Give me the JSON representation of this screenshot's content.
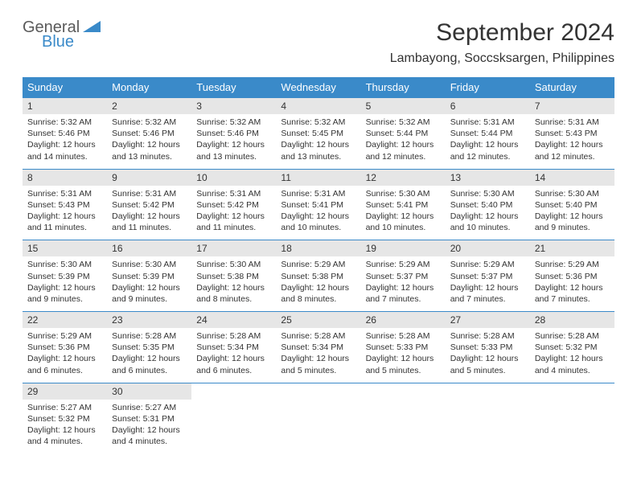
{
  "logo": {
    "text1": "General",
    "text2": "Blue",
    "icon_color": "#3a8ac9"
  },
  "title": "September 2024",
  "location": "Lambayong, Soccsksargen, Philippines",
  "colors": {
    "header_bg": "#3a8ac9",
    "header_text": "#ffffff",
    "daynum_bg": "#e6e6e6",
    "text": "#333333",
    "border": "#3a8ac9",
    "background": "#ffffff"
  },
  "weekdays": [
    "Sunday",
    "Monday",
    "Tuesday",
    "Wednesday",
    "Thursday",
    "Friday",
    "Saturday"
  ],
  "weeks": [
    [
      {
        "n": "1",
        "sr": "5:32 AM",
        "ss": "5:46 PM",
        "dl": "12 hours and 14 minutes."
      },
      {
        "n": "2",
        "sr": "5:32 AM",
        "ss": "5:46 PM",
        "dl": "12 hours and 13 minutes."
      },
      {
        "n": "3",
        "sr": "5:32 AM",
        "ss": "5:46 PM",
        "dl": "12 hours and 13 minutes."
      },
      {
        "n": "4",
        "sr": "5:32 AM",
        "ss": "5:45 PM",
        "dl": "12 hours and 13 minutes."
      },
      {
        "n": "5",
        "sr": "5:32 AM",
        "ss": "5:44 PM",
        "dl": "12 hours and 12 minutes."
      },
      {
        "n": "6",
        "sr": "5:31 AM",
        "ss": "5:44 PM",
        "dl": "12 hours and 12 minutes."
      },
      {
        "n": "7",
        "sr": "5:31 AM",
        "ss": "5:43 PM",
        "dl": "12 hours and 12 minutes."
      }
    ],
    [
      {
        "n": "8",
        "sr": "5:31 AM",
        "ss": "5:43 PM",
        "dl": "12 hours and 11 minutes."
      },
      {
        "n": "9",
        "sr": "5:31 AM",
        "ss": "5:42 PM",
        "dl": "12 hours and 11 minutes."
      },
      {
        "n": "10",
        "sr": "5:31 AM",
        "ss": "5:42 PM",
        "dl": "12 hours and 11 minutes."
      },
      {
        "n": "11",
        "sr": "5:31 AM",
        "ss": "5:41 PM",
        "dl": "12 hours and 10 minutes."
      },
      {
        "n": "12",
        "sr": "5:30 AM",
        "ss": "5:41 PM",
        "dl": "12 hours and 10 minutes."
      },
      {
        "n": "13",
        "sr": "5:30 AM",
        "ss": "5:40 PM",
        "dl": "12 hours and 10 minutes."
      },
      {
        "n": "14",
        "sr": "5:30 AM",
        "ss": "5:40 PM",
        "dl": "12 hours and 9 minutes."
      }
    ],
    [
      {
        "n": "15",
        "sr": "5:30 AM",
        "ss": "5:39 PM",
        "dl": "12 hours and 9 minutes."
      },
      {
        "n": "16",
        "sr": "5:30 AM",
        "ss": "5:39 PM",
        "dl": "12 hours and 9 minutes."
      },
      {
        "n": "17",
        "sr": "5:30 AM",
        "ss": "5:38 PM",
        "dl": "12 hours and 8 minutes."
      },
      {
        "n": "18",
        "sr": "5:29 AM",
        "ss": "5:38 PM",
        "dl": "12 hours and 8 minutes."
      },
      {
        "n": "19",
        "sr": "5:29 AM",
        "ss": "5:37 PM",
        "dl": "12 hours and 7 minutes."
      },
      {
        "n": "20",
        "sr": "5:29 AM",
        "ss": "5:37 PM",
        "dl": "12 hours and 7 minutes."
      },
      {
        "n": "21",
        "sr": "5:29 AM",
        "ss": "5:36 PM",
        "dl": "12 hours and 7 minutes."
      }
    ],
    [
      {
        "n": "22",
        "sr": "5:29 AM",
        "ss": "5:36 PM",
        "dl": "12 hours and 6 minutes."
      },
      {
        "n": "23",
        "sr": "5:28 AM",
        "ss": "5:35 PM",
        "dl": "12 hours and 6 minutes."
      },
      {
        "n": "24",
        "sr": "5:28 AM",
        "ss": "5:34 PM",
        "dl": "12 hours and 6 minutes."
      },
      {
        "n": "25",
        "sr": "5:28 AM",
        "ss": "5:34 PM",
        "dl": "12 hours and 5 minutes."
      },
      {
        "n": "26",
        "sr": "5:28 AM",
        "ss": "5:33 PM",
        "dl": "12 hours and 5 minutes."
      },
      {
        "n": "27",
        "sr": "5:28 AM",
        "ss": "5:33 PM",
        "dl": "12 hours and 5 minutes."
      },
      {
        "n": "28",
        "sr": "5:28 AM",
        "ss": "5:32 PM",
        "dl": "12 hours and 4 minutes."
      }
    ],
    [
      {
        "n": "29",
        "sr": "5:27 AM",
        "ss": "5:32 PM",
        "dl": "12 hours and 4 minutes."
      },
      {
        "n": "30",
        "sr": "5:27 AM",
        "ss": "5:31 PM",
        "dl": "12 hours and 4 minutes."
      },
      null,
      null,
      null,
      null,
      null
    ]
  ],
  "labels": {
    "sunrise": "Sunrise: ",
    "sunset": "Sunset: ",
    "daylight": "Daylight: "
  }
}
